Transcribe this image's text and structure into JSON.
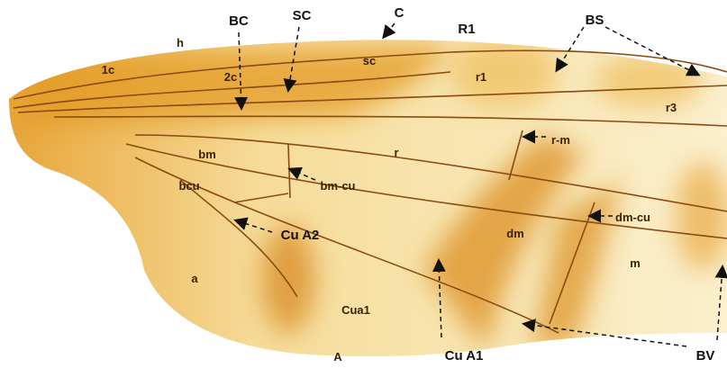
{
  "labels": [
    "BC",
    "SC",
    "C",
    "R1",
    "BS",
    "h",
    "1c",
    "2c",
    "sc",
    "r1",
    "r3",
    "r-m",
    "bm",
    "r",
    "bcu",
    "bm-cu",
    "Cu A2",
    "dm",
    "dm-cu",
    "m",
    "a",
    "Cua1",
    "A",
    "Cu A1",
    "BV"
  ]
}
